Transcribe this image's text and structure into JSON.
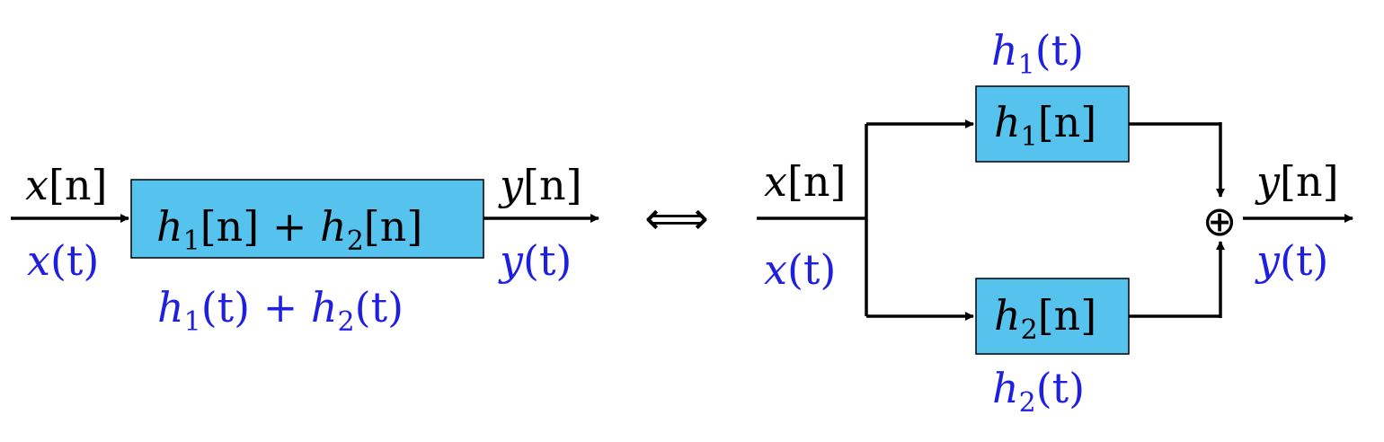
{
  "left_system": {
    "input_discrete": [
      "x",
      "[n]"
    ],
    "input_continuous": [
      "x",
      "(t)"
    ],
    "block_label": [
      "h",
      "1",
      "[n] + ",
      "h",
      "2",
      "[n]"
    ],
    "block_label_continuous": [
      "h",
      "1",
      "(t) + ",
      "h",
      "2",
      "(t)"
    ],
    "output_discrete": [
      "y",
      "[n]"
    ],
    "output_continuous": [
      "y",
      "(t)"
    ]
  },
  "equivalence_symbol": "⟺",
  "right_system": {
    "input_discrete": [
      "x",
      "[n]"
    ],
    "input_continuous": [
      "x",
      "(t)"
    ],
    "top_block_continuous": [
      "h",
      "1",
      "(t)"
    ],
    "top_block_label": [
      "h",
      "1",
      "[n]"
    ],
    "bottom_block_label": [
      "h",
      "2",
      "[n]"
    ],
    "bottom_block_continuous": [
      "h",
      "2",
      "(t)"
    ],
    "adder_symbol": "⊕",
    "output_discrete": [
      "y",
      "[n]"
    ],
    "output_continuous": [
      "y",
      "(t)"
    ]
  },
  "colors": {
    "block_fill": "#56c2ee",
    "continuous_label": "#1f1fe0",
    "discrete_label": "#000000",
    "line": "#000000"
  }
}
